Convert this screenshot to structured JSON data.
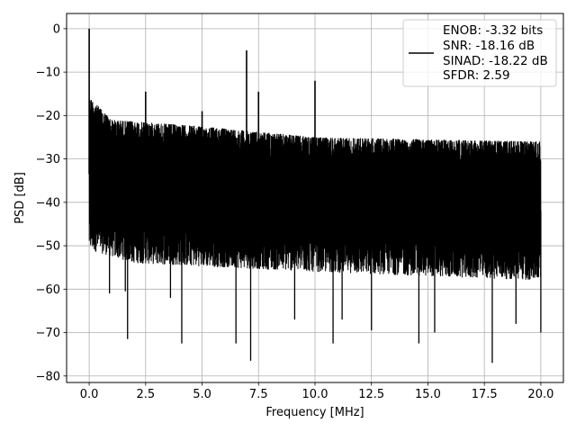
{
  "chart_data": {
    "type": "line",
    "title": "",
    "xlabel": "Frequency [MHz]",
    "ylabel": "PSD [dB]",
    "xlim": [
      -1.0,
      21.0
    ],
    "ylim": [
      -81.5,
      3.5
    ],
    "x_ticks": [
      0.0,
      2.5,
      5.0,
      7.5,
      10.0,
      12.5,
      15.0,
      17.5,
      20.0
    ],
    "x_tick_labels": [
      "0.0",
      "2.5",
      "5.0",
      "7.5",
      "10.0",
      "12.5",
      "15.0",
      "17.5",
      "20.0"
    ],
    "y_ticks": [
      0,
      -10,
      -20,
      -30,
      -40,
      -50,
      -60,
      -70,
      -80
    ],
    "y_tick_labels": [
      "0",
      "−10",
      "−20",
      "−30",
      "−40",
      "−50",
      "−60",
      "−70",
      "−80"
    ],
    "grid": true,
    "legend_position": "top-right",
    "legend_lines": [
      "ENOB: -3.32 bits",
      "SNR: -18.16 dB",
      "SINAD: -18.22 dB",
      "SFDR: 2.59"
    ],
    "series": [
      {
        "color": "#000000",
        "description": "dense noisy PSD spectrum",
        "x_range": [
          0.0,
          20.0
        ],
        "upper_envelope": {
          "x": [
            0.05,
            1.0,
            5.0,
            10.0,
            15.0,
            20.0
          ],
          "y": [
            -16,
            -21,
            -22.5,
            -25,
            -25.5,
            -26
          ]
        },
        "lower_envelope": {
          "x": [
            0.05,
            2.0,
            10.0,
            20.0
          ],
          "y": [
            -51,
            -54,
            -56,
            -58
          ]
        },
        "deep_dips": [
          {
            "x": 0.9,
            "y": -61
          },
          {
            "x": 1.6,
            "y": -60.5
          },
          {
            "x": 1.7,
            "y": -71.5
          },
          {
            "x": 3.6,
            "y": -62
          },
          {
            "x": 4.1,
            "y": -72.5
          },
          {
            "x": 6.5,
            "y": -72.5
          },
          {
            "x": 7.15,
            "y": -76.5
          },
          {
            "x": 9.1,
            "y": -67
          },
          {
            "x": 10.8,
            "y": -72.5
          },
          {
            "x": 11.2,
            "y": -67
          },
          {
            "x": 12.5,
            "y": -69.5
          },
          {
            "x": 14.6,
            "y": -72.5
          },
          {
            "x": 15.3,
            "y": -70
          },
          {
            "x": 17.85,
            "y": -77
          },
          {
            "x": 18.9,
            "y": -68
          },
          {
            "x": 20.0,
            "y": -70
          }
        ],
        "spurs": [
          {
            "x": 0.0,
            "y": 0.0
          },
          {
            "x": 2.5,
            "y": -14.5
          },
          {
            "x": 6.97,
            "y": -5.0
          },
          {
            "x": 7.5,
            "y": -14.5
          },
          {
            "x": 10.0,
            "y": -12.0
          },
          {
            "x": 5.0,
            "y": -19.0
          }
        ]
      }
    ]
  }
}
